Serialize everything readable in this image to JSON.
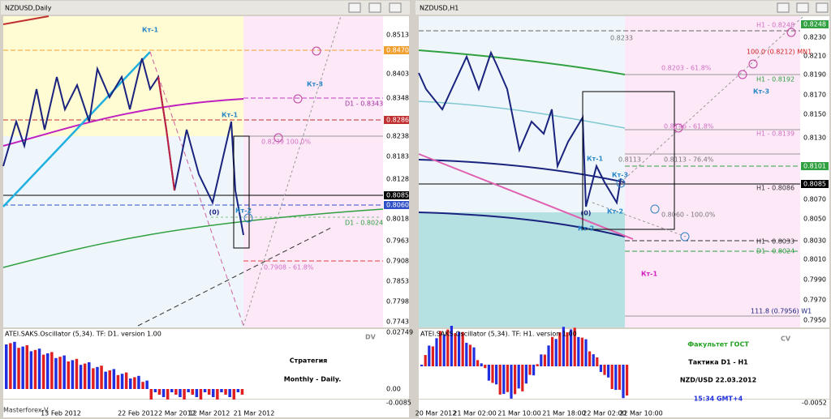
{
  "left": {
    "title": "NZDUSD,Daily",
    "y_labels": [
      "0.8513",
      "0.8470",
      "0.8403",
      "0.8348",
      "0.8286",
      "0.8238",
      "0.8183",
      "0.8128",
      "0.8085",
      "0.8060",
      "0.8018",
      "0.7963",
      "0.7908",
      "0.7853",
      "0.7798",
      "0.7743"
    ],
    "dates": [
      "13 Feb 2012",
      "22 Feb 2012",
      "2 Mar 2012",
      "12 Mar 2012",
      "21 Mar 2012"
    ],
    "annotations": [
      "Кт-1",
      "Кт-1",
      "Кт-3",
      "Кт-2",
      "(0)",
      "D1 - 0.8343",
      "D1 - 0.8024",
      "0.8239 100.0%",
      "0.7908 - 61.8%"
    ],
    "oscillator": {
      "title": "ATEI.SAKS.Oscillator (5,34). TF: D1. version 1.00",
      "tag": "DV",
      "y_labels": [
        "0.02749",
        "0.00",
        "-0.0085"
      ]
    },
    "overlay": [
      "Стратегия",
      "Monthly - Daily."
    ],
    "watermark": "Masterforex-V"
  },
  "right": {
    "title": "NZDUSD,H1",
    "y_labels": [
      "0.8248",
      "0.8230",
      "0.8210",
      "0.8190",
      "0.8170",
      "0.8150",
      "0.8130",
      "0.8101",
      "0.8085",
      "0.8070",
      "0.8050",
      "0.8030",
      "0.8010",
      "0.7990",
      "0.7970",
      "0.7950"
    ],
    "dates": [
      "20 Mar 2012",
      "21 Mar 02:00",
      "21 Mar 10:00",
      "21 Mar 18:00",
      "22 Mar 02:00",
      "22 Mar 10:00"
    ],
    "annotations": [
      "0.8233",
      "H1 - 0.8248",
      "100.0 (0.8212) MN1",
      "H1 - 0.8192",
      "Кт-3",
      "0.8203 - 61.8%",
      "0.8146 - 61.8%",
      "H1 - 0.8139",
      "0.8113",
      "0.8113 - 76.4%",
      "H1 - 0.8086",
      "0.8060 - 100.0%",
      "H1 - 0.8033",
      "D1 - 0.8024",
      "111.8 (0.7956) W1",
      "Кт-1",
      "Кт-3",
      "(0)",
      "Кт-2",
      "Кт-2",
      "Кт-1"
    ],
    "oscillator": {
      "title": "ATEI.SAKS.Oscillator (5,34). TF: H1. version 1.00",
      "tag": "CV",
      "y_labels": [
        "-0.0052"
      ]
    },
    "overlay": [
      "Факультет ГОСТ",
      "Тактика D1 - H1",
      "NZD/USD 22.03.2012",
      "15:34 GMT+4"
    ]
  }
}
